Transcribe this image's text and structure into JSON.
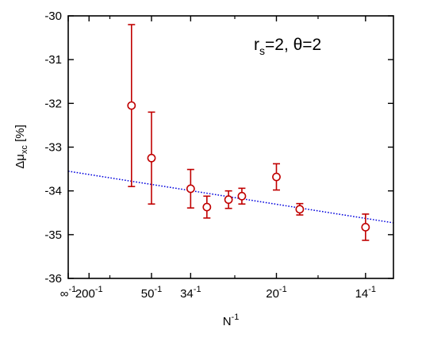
{
  "chart_data": {
    "type": "scatter",
    "title": "",
    "annotation": {
      "r": "r",
      "sub": "s",
      "rest": "=2, θ=2"
    },
    "ylabel": {
      "prefix": "Δμ",
      "sub": "xc",
      "suffix": " [%]"
    },
    "xlabel": {
      "base": "N",
      "sup": "-1"
    },
    "xlim": [
      0,
      0.0781
    ],
    "ylim": [
      -36,
      -30
    ],
    "grid": false,
    "x_ticks": [
      {
        "value": 0,
        "base": "∞",
        "sup": "-1"
      },
      {
        "value": 0.005,
        "base": "200",
        "sup": "-1"
      },
      {
        "value": 0.02,
        "base": "50",
        "sup": "-1"
      },
      {
        "value": 0.0294,
        "base": "34",
        "sup": "-1"
      },
      {
        "value": 0.05,
        "base": "20",
        "sup": "-1"
      },
      {
        "value": 0.0714,
        "base": "14",
        "sup": "-1"
      }
    ],
    "x_minor_ticks": [
      0.01,
      0.04,
      0.06
    ],
    "y_ticks": [
      {
        "value": -30,
        "label": "-30"
      },
      {
        "value": -31,
        "label": "-31"
      },
      {
        "value": -32,
        "label": "-32"
      },
      {
        "value": -33,
        "label": "-33"
      },
      {
        "value": -34,
        "label": "-34"
      },
      {
        "value": -35,
        "label": "-35"
      },
      {
        "value": -36,
        "label": "-36"
      }
    ],
    "points": [
      {
        "x": 0.0152,
        "y": -32.05,
        "err": 1.85
      },
      {
        "x": 0.02,
        "y": -33.25,
        "err": 1.05
      },
      {
        "x": 0.0294,
        "y": -33.95,
        "err": 0.44
      },
      {
        "x": 0.0333,
        "y": -34.37,
        "err": 0.25
      },
      {
        "x": 0.0385,
        "y": -34.2,
        "err": 0.2
      },
      {
        "x": 0.0417,
        "y": -34.12,
        "err": 0.18
      },
      {
        "x": 0.05,
        "y": -33.68,
        "err": 0.3
      },
      {
        "x": 0.0556,
        "y": -34.42,
        "err": 0.13
      },
      {
        "x": 0.0714,
        "y": -34.83,
        "err": 0.3
      }
    ],
    "fit_line": {
      "x": [
        0,
        0.0781
      ],
      "y": [
        -33.55,
        -34.73
      ]
    },
    "colors": {
      "points": "#c00000",
      "fit": "#0000dd",
      "axes": "#000000"
    }
  }
}
